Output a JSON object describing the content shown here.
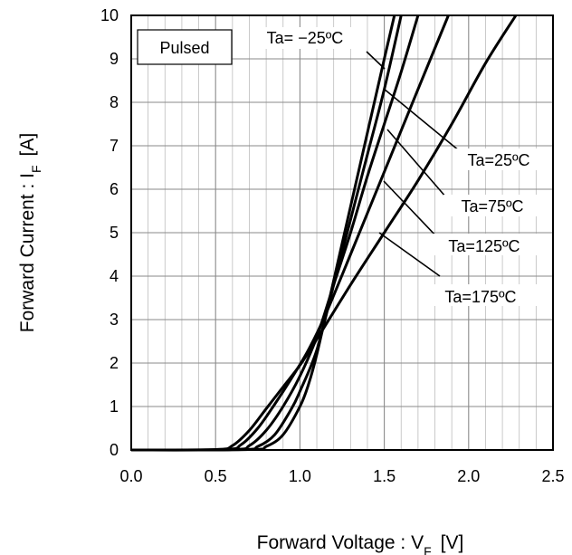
{
  "chart_data": {
    "type": "line",
    "xlabel": "Forward Voltage : V",
    "xlabel_sub": "F",
    "xlabel_unit": "[V]",
    "ylabel": "Forward Current : I",
    "ylabel_sub": "F",
    "ylabel_unit": "[A]",
    "xlim": [
      0.0,
      2.5
    ],
    "ylim": [
      0,
      10
    ],
    "x_ticks": [
      "0.0",
      "0.5",
      "1.0",
      "1.5",
      "2.0",
      "2.5"
    ],
    "y_ticks": [
      "0",
      "1",
      "2",
      "3",
      "4",
      "5",
      "6",
      "7",
      "8",
      "9",
      "10"
    ],
    "grid": true,
    "condition_label": "Pulsed",
    "series": [
      {
        "name": "Ta= −25ºC",
        "points": [
          [
            0.0,
            0
          ],
          [
            0.7,
            0.01
          ],
          [
            0.8,
            0.08
          ],
          [
            0.9,
            0.35
          ],
          [
            1.0,
            1.0
          ],
          [
            1.05,
            1.5
          ],
          [
            1.1,
            2.2
          ],
          [
            1.2,
            3.9
          ],
          [
            1.3,
            5.6
          ],
          [
            1.4,
            7.3
          ],
          [
            1.5,
            9.0
          ],
          [
            1.56,
            10
          ]
        ]
      },
      {
        "name": "Ta=25ºC",
        "points": [
          [
            0.0,
            0
          ],
          [
            0.65,
            0.01
          ],
          [
            0.75,
            0.08
          ],
          [
            0.85,
            0.35
          ],
          [
            0.95,
            0.95
          ],
          [
            1.0,
            1.35
          ],
          [
            1.1,
            2.3
          ],
          [
            1.2,
            3.8
          ],
          [
            1.3,
            5.3
          ],
          [
            1.4,
            6.8
          ],
          [
            1.5,
            8.3
          ],
          [
            1.6,
            10
          ]
        ]
      },
      {
        "name": "Ta=75ºC",
        "points": [
          [
            0.0,
            0
          ],
          [
            0.6,
            0.01
          ],
          [
            0.7,
            0.1
          ],
          [
            0.8,
            0.45
          ],
          [
            0.9,
            1.0
          ],
          [
            1.0,
            1.7
          ],
          [
            1.1,
            2.6
          ],
          [
            1.2,
            3.8
          ],
          [
            1.3,
            5.0
          ],
          [
            1.4,
            6.3
          ],
          [
            1.5,
            7.5
          ],
          [
            1.6,
            8.7
          ],
          [
            1.7,
            10
          ]
        ]
      },
      {
        "name": "Ta=125ºC",
        "points": [
          [
            0.0,
            0
          ],
          [
            0.55,
            0.01
          ],
          [
            0.65,
            0.12
          ],
          [
            0.75,
            0.5
          ],
          [
            0.85,
            1.05
          ],
          [
            0.95,
            1.65
          ],
          [
            1.05,
            2.3
          ],
          [
            1.15,
            3.1
          ],
          [
            1.3,
            4.5
          ],
          [
            1.5,
            6.4
          ],
          [
            1.7,
            8.3
          ],
          [
            1.88,
            10
          ]
        ]
      },
      {
        "name": "Ta=175ºC",
        "points": [
          [
            0.0,
            0
          ],
          [
            0.5,
            0.01
          ],
          [
            0.6,
            0.1
          ],
          [
            0.7,
            0.45
          ],
          [
            0.8,
            0.95
          ],
          [
            0.9,
            1.45
          ],
          [
            1.0,
            1.95
          ],
          [
            1.1,
            2.55
          ],
          [
            1.3,
            3.8
          ],
          [
            1.5,
            5.0
          ],
          [
            1.7,
            6.2
          ],
          [
            1.9,
            7.5
          ],
          [
            2.1,
            8.9
          ],
          [
            2.28,
            10
          ]
        ]
      }
    ]
  }
}
